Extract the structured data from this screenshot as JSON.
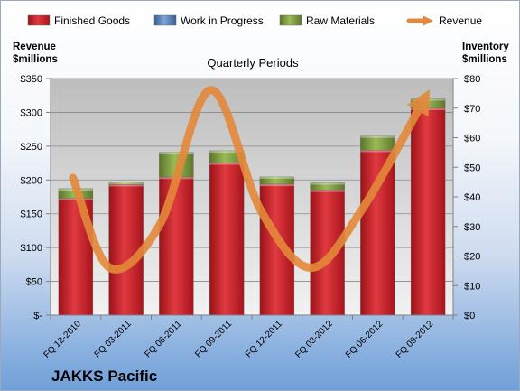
{
  "chart_data": {
    "type": "bar",
    "title": "Quarterly Periods",
    "company": "JAKKS Pacific",
    "left_axis_label": [
      "Revenue",
      "$millions"
    ],
    "right_axis_label": [
      "Inventory",
      "$millions"
    ],
    "categories": [
      "FQ 12-2010",
      "FQ 03-2011",
      "FQ 06-2011",
      "FQ 09-2011",
      "FQ 12-2011",
      "FQ 03-2012",
      "FQ 06-2012",
      "FQ 09-2012"
    ],
    "left_ticks": [
      "$-",
      "$50",
      "$100",
      "$150",
      "$200",
      "$250",
      "$300",
      "$350"
    ],
    "right_ticks": [
      "$0",
      "$10",
      "$20",
      "$30",
      "$40",
      "$50",
      "$60",
      "$70",
      "$80"
    ],
    "left_ylim": [
      0,
      350
    ],
    "right_ylim": [
      0,
      80
    ],
    "stacked": true,
    "series": [
      {
        "name": "Finished Goods",
        "axis": "right",
        "color": "#c0202a",
        "values": [
          39.5,
          44.2,
          46.7,
          51.5,
          44.3,
          42.3,
          55.8,
          70.0
        ]
      },
      {
        "name": "Work in Progress",
        "axis": "right",
        "color": "#4f81bd",
        "values": [
          0,
          0,
          0,
          0,
          0,
          0,
          0,
          0
        ]
      },
      {
        "name": "Raw Materials",
        "axis": "right",
        "color": "#77933c",
        "values": [
          3.3,
          0.8,
          8.4,
          4.1,
          2.5,
          2.5,
          4.8,
          3.2
        ]
      },
      {
        "name": "Revenue",
        "axis": "left",
        "type": "line",
        "color": "#e4893a",
        "values": [
          203,
          70,
          135,
          333,
          155,
          70,
          155,
          315
        ]
      }
    ],
    "legend_position": "top",
    "grid": true
  }
}
